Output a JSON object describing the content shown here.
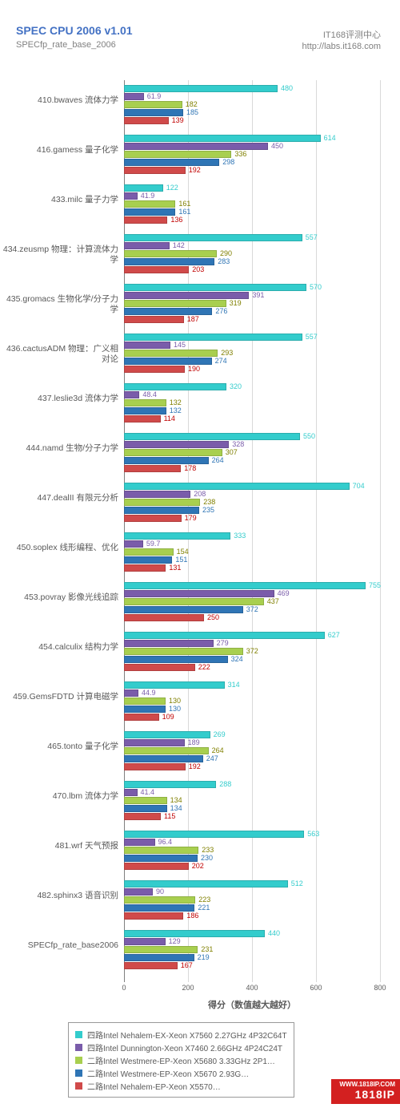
{
  "header": {
    "title": "SPEC CPU 2006 v1.01",
    "subtitle": "SPECfp_rate_base_2006",
    "source1": "IT168评测中心",
    "source2": "http://labs.it168.com"
  },
  "chart": {
    "type": "bar_horizontal_grouped",
    "x_axis": {
      "min": 0,
      "max": 800,
      "step": 200,
      "title": "得分（数值越大越好）"
    },
    "series": [
      {
        "name": "四路Intel Nehalem-EX-Xeon X7560 2.27GHz 4P32C64T",
        "color": "#33cccc",
        "label_color": "#33cccc"
      },
      {
        "name": "四路Intel Dunnington-Xeon X7460 2.66GHz 4P24C24T",
        "color": "#7a5caa",
        "label_color": "#7a5caa"
      },
      {
        "name": "二路Intel Westmere-EP-Xeon X5680 3.33GHz 2P1…",
        "color": "#a8cf4f",
        "label_color": "#808000"
      },
      {
        "name": "二路Intel Westmere-EP-Xeon X5670 2.93G…",
        "color": "#2f75b5",
        "label_color": "#2f75b5"
      },
      {
        "name": "二路Intel Nehalem-EP-Xeon X5570…",
        "color": "#d04a4a",
        "label_color": "#c00000"
      }
    ],
    "categories": [
      {
        "label": "410.bwaves 流体力学",
        "values": [
          480,
          61.9,
          182,
          185,
          139
        ]
      },
      {
        "label": "416.gamess 量子化学",
        "values": [
          614,
          450,
          336,
          298,
          192
        ]
      },
      {
        "label": "433.milc 量子力学",
        "values": [
          122,
          41.9,
          161,
          161,
          136
        ]
      },
      {
        "label": "434.zeusmp 物理：计算流体力学",
        "values": [
          557,
          142,
          290,
          283,
          203
        ]
      },
      {
        "label": "435.gromacs 生物化学/分子力学",
        "values": [
          570,
          391,
          319,
          276,
          187
        ]
      },
      {
        "label": "436.cactusADM 物理：广义相对论",
        "values": [
          557,
          145,
          293,
          274,
          190
        ]
      },
      {
        "label": "437.leslie3d 流体力学",
        "values": [
          320,
          48.4,
          132,
          132,
          114
        ]
      },
      {
        "label": "444.namd 生物/分子力学",
        "values": [
          550,
          328,
          307,
          264,
          178
        ]
      },
      {
        "label": "447.dealII 有限元分析",
        "values": [
          704,
          208,
          238,
          235,
          179
        ]
      },
      {
        "label": "450.soplex 线形编程、优化",
        "values": [
          333,
          59.7,
          154,
          151,
          131
        ]
      },
      {
        "label": "453.povray 影像光线追踪",
        "values": [
          755,
          469,
          437,
          372,
          250
        ]
      },
      {
        "label": "454.calculix 结构力学",
        "values": [
          627,
          279,
          372,
          324,
          222
        ]
      },
      {
        "label": "459.GemsFDTD 计算电磁学",
        "values": [
          314,
          44.9,
          130,
          130,
          109
        ]
      },
      {
        "label": "465.tonto 量子化学",
        "values": [
          269,
          189,
          264,
          247,
          192
        ]
      },
      {
        "label": "470.lbm 流体力学",
        "values": [
          288,
          41.4,
          134,
          134,
          115
        ]
      },
      {
        "label": "481.wrf 天气预报",
        "values": [
          563,
          96.4,
          233,
          230,
          202
        ]
      },
      {
        "label": "482.sphinx3 语音识别",
        "values": [
          512,
          90,
          223,
          221,
          186
        ]
      },
      {
        "label": "SPECfp_rate_base2006",
        "values": [
          440,
          129,
          231,
          219,
          167
        ]
      }
    ]
  },
  "watermark": {
    "top": "WWW.1818IP.COM",
    "bot": "1818IP"
  }
}
